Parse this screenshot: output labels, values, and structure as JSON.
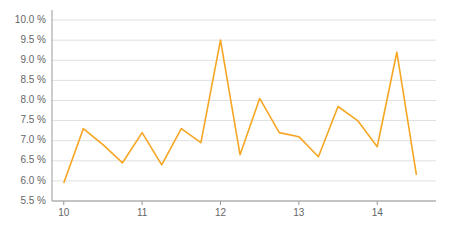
{
  "chart_data": {
    "type": "line",
    "x": [
      10.0,
      10.25,
      10.5,
      10.75,
      11.0,
      11.25,
      11.5,
      11.75,
      12.0,
      12.25,
      12.5,
      12.75,
      13.0,
      13.25,
      13.5,
      13.75,
      14.0,
      14.25,
      14.5
    ],
    "values": [
      5.95,
      7.3,
      6.9,
      6.45,
      7.2,
      6.4,
      7.3,
      6.95,
      9.5,
      6.65,
      8.05,
      7.2,
      7.1,
      6.6,
      7.85,
      7.5,
      6.85,
      9.2,
      6.15
    ],
    "color": "#f5a623",
    "xlim": [
      9.85,
      14.75
    ],
    "ylim": [
      5.5,
      10.25
    ],
    "xticks": [
      10,
      11,
      12,
      13,
      14
    ],
    "yticks": [
      {
        "value": 5.5,
        "label": "5.5 %"
      },
      {
        "value": 6.0,
        "label": "6.0 %"
      },
      {
        "value": 6.5,
        "label": "6.5 %"
      },
      {
        "value": 7.0,
        "label": "7.0 %"
      },
      {
        "value": 7.5,
        "label": "7.5 %"
      },
      {
        "value": 8.0,
        "label": "8.0 %"
      },
      {
        "value": 8.5,
        "label": "8.5 %"
      },
      {
        "value": 9.0,
        "label": "9.0 %"
      },
      {
        "value": 9.5,
        "label": "9.5 %"
      },
      {
        "value": 10.0,
        "label": "10.0 %"
      }
    ],
    "grid": true
  }
}
